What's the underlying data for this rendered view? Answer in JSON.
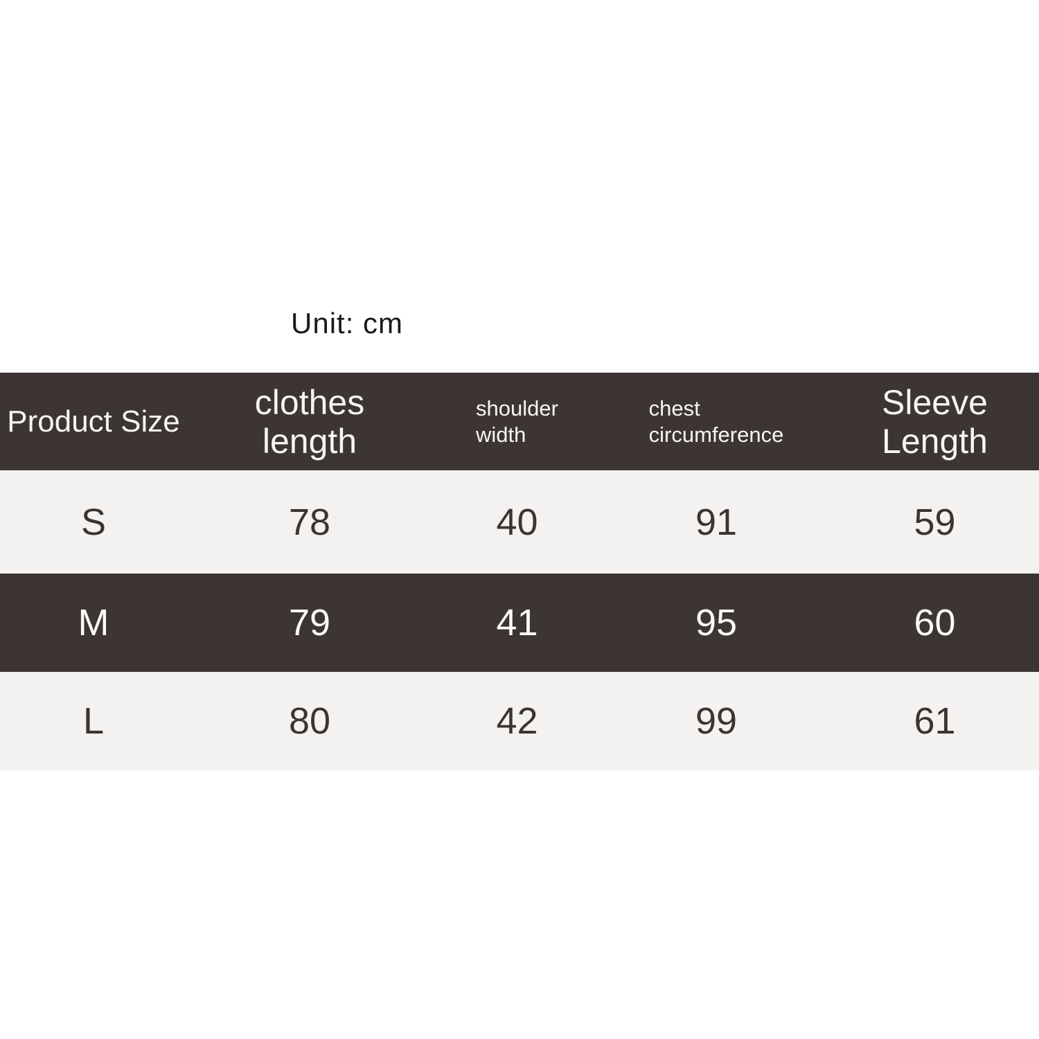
{
  "unit_label": "Unit: cm",
  "colors": {
    "page_bg": "#ffffff",
    "dark_band": "#3d3534",
    "light_band": "#f3f2f0",
    "text_on_dark": "#f7f5f3",
    "text_on_light": "#3b3430",
    "unit_text": "#1c1a19"
  },
  "header": [
    {
      "line1": "Product Size",
      "line2": ""
    },
    {
      "line1": "clothes",
      "line2": "length"
    },
    {
      "line1": "shoulder",
      "line2": "width"
    },
    {
      "line1": "chest",
      "line2": "circumference"
    },
    {
      "line1": "Sleeve",
      "line2": "Length"
    }
  ],
  "rows": [
    {
      "size": "S",
      "clothes_length": "78",
      "shoulder_width": "40",
      "chest_circumference": "91",
      "sleeve_length": "59"
    },
    {
      "size": "M",
      "clothes_length": "79",
      "shoulder_width": "41",
      "chest_circumference": "95",
      "sleeve_length": "60"
    },
    {
      "size": "L",
      "clothes_length": "80",
      "shoulder_width": "42",
      "chest_circumference": "99",
      "sleeve_length": "61"
    }
  ],
  "chart_data": {
    "type": "table",
    "title": "Unit: cm",
    "columns": [
      "Product Size",
      "clothes length",
      "shoulder width",
      "chest circumference",
      "Sleeve Length"
    ],
    "rows": [
      [
        "S",
        78,
        40,
        91,
        59
      ],
      [
        "M",
        79,
        41,
        95,
        60
      ],
      [
        "L",
        80,
        42,
        99,
        61
      ]
    ],
    "layout_hints": {
      "header_style": "dark band, white text",
      "row_striping": "light, dark, light",
      "unit": "cm"
    }
  }
}
